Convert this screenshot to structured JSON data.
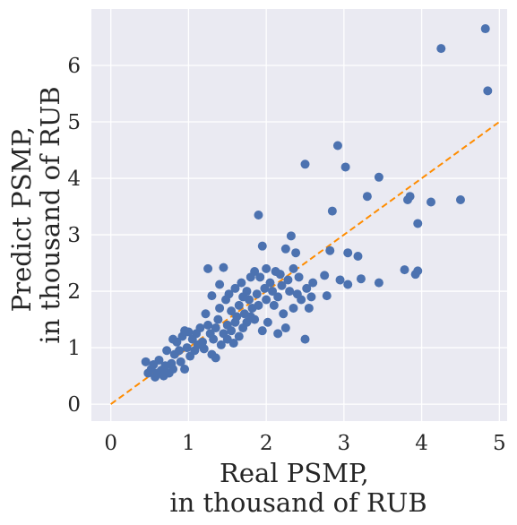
{
  "chart_data": {
    "type": "scatter",
    "xlabel": [
      "Real PSMP,",
      "in thousand of RUB"
    ],
    "ylabel": [
      "Predict PSMP,",
      "in thousand of RUB"
    ],
    "xlim": [
      -0.25,
      5.1
    ],
    "ylim": [
      -0.3,
      7.0
    ],
    "xticks": [
      "0",
      "1",
      "2",
      "3",
      "4",
      "5"
    ],
    "yticks": [
      "0",
      "1",
      "2",
      "3",
      "4",
      "5",
      "6"
    ],
    "grid": true,
    "background": "#eaeaf2",
    "point_color": "#4c72b0",
    "reference_line": {
      "x": [
        0,
        5
      ],
      "y": [
        0,
        5
      ],
      "style": "dashed",
      "color": "#ff8c00"
    },
    "points": [
      [
        0.45,
        0.75
      ],
      [
        0.48,
        0.55
      ],
      [
        0.52,
        0.62
      ],
      [
        0.55,
        0.7
      ],
      [
        0.57,
        0.48
      ],
      [
        0.6,
        0.55
      ],
      [
        0.62,
        0.78
      ],
      [
        0.65,
        0.6
      ],
      [
        0.68,
        0.5
      ],
      [
        0.7,
        0.68
      ],
      [
        0.72,
        0.95
      ],
      [
        0.75,
        0.55
      ],
      [
        0.78,
        0.72
      ],
      [
        0.8,
        0.62
      ],
      [
        0.8,
        1.15
      ],
      [
        0.82,
        0.88
      ],
      [
        0.85,
        1.1
      ],
      [
        0.88,
        0.95
      ],
      [
        0.9,
        0.75
      ],
      [
        0.92,
        1.2
      ],
      [
        0.95,
        1.3
      ],
      [
        0.95,
        0.62
      ],
      [
        0.98,
        1.0
      ],
      [
        1.0,
        1.28
      ],
      [
        1.02,
        0.85
      ],
      [
        1.05,
        1.15
      ],
      [
        1.08,
        0.95
      ],
      [
        1.1,
        1.25
      ],
      [
        1.12,
        1.05
      ],
      [
        1.15,
        1.35
      ],
      [
        1.18,
        1.1
      ],
      [
        1.2,
        0.98
      ],
      [
        1.22,
        1.6
      ],
      [
        1.25,
        1.4
      ],
      [
        1.25,
        2.4
      ],
      [
        1.28,
        1.25
      ],
      [
        1.3,
        1.92
      ],
      [
        1.3,
        0.88
      ],
      [
        1.32,
        1.15
      ],
      [
        1.35,
        1.35
      ],
      [
        1.35,
        0.82
      ],
      [
        1.38,
        1.5
      ],
      [
        1.4,
        1.7
      ],
      [
        1.4,
        2.12
      ],
      [
        1.42,
        1.05
      ],
      [
        1.45,
        2.42
      ],
      [
        1.45,
        1.25
      ],
      [
        1.48,
        1.85
      ],
      [
        1.5,
        1.4
      ],
      [
        1.5,
        1.15
      ],
      [
        1.52,
        1.95
      ],
      [
        1.55,
        1.3
      ],
      [
        1.55,
        1.65
      ],
      [
        1.58,
        1.08
      ],
      [
        1.6,
        2.05
      ],
      [
        1.6,
        1.45
      ],
      [
        1.62,
        1.55
      ],
      [
        1.65,
        1.75
      ],
      [
        1.65,
        1.2
      ],
      [
        1.68,
        2.15
      ],
      [
        1.7,
        1.9
      ],
      [
        1.7,
        1.35
      ],
      [
        1.72,
        1.6
      ],
      [
        1.75,
        2.0
      ],
      [
        1.75,
        1.45
      ],
      [
        1.78,
        1.85
      ],
      [
        1.8,
        2.25
      ],
      [
        1.8,
        1.55
      ],
      [
        1.82,
        1.7
      ],
      [
        1.85,
        2.35
      ],
      [
        1.85,
        1.5
      ],
      [
        1.88,
        1.95
      ],
      [
        1.9,
        3.35
      ],
      [
        1.9,
        1.75
      ],
      [
        1.92,
        2.25
      ],
      [
        1.95,
        2.8
      ],
      [
        1.95,
        1.3
      ],
      [
        1.98,
        2.05
      ],
      [
        2.0,
        2.4
      ],
      [
        2.0,
        1.85
      ],
      [
        2.02,
        1.45
      ],
      [
        2.05,
        2.15
      ],
      [
        2.08,
        2.0
      ],
      [
        2.1,
        1.75
      ],
      [
        2.12,
        2.35
      ],
      [
        2.15,
        1.25
      ],
      [
        2.15,
        1.9
      ],
      [
        2.18,
        2.3
      ],
      [
        2.2,
        2.1
      ],
      [
        2.22,
        1.6
      ],
      [
        2.25,
        2.75
      ],
      [
        2.25,
        1.35
      ],
      [
        2.28,
        2.2
      ],
      [
        2.3,
        2.0
      ],
      [
        2.32,
        2.98
      ],
      [
        2.35,
        1.7
      ],
      [
        2.35,
        2.4
      ],
      [
        2.38,
        2.68
      ],
      [
        2.4,
        1.95
      ],
      [
        2.42,
        2.25
      ],
      [
        2.45,
        1.85
      ],
      [
        2.5,
        4.25
      ],
      [
        2.5,
        1.15
      ],
      [
        2.52,
        2.05
      ],
      [
        2.55,
        1.7
      ],
      [
        2.58,
        1.9
      ],
      [
        2.6,
        2.15
      ],
      [
        2.75,
        2.28
      ],
      [
        2.78,
        1.92
      ],
      [
        2.82,
        2.72
      ],
      [
        2.85,
        3.42
      ],
      [
        2.92,
        4.58
      ],
      [
        2.95,
        2.2
      ],
      [
        3.02,
        4.2
      ],
      [
        3.05,
        2.68
      ],
      [
        3.05,
        2.12
      ],
      [
        3.18,
        2.62
      ],
      [
        3.22,
        2.22
      ],
      [
        3.3,
        3.68
      ],
      [
        3.45,
        4.02
      ],
      [
        3.45,
        2.15
      ],
      [
        3.78,
        2.38
      ],
      [
        3.82,
        3.62
      ],
      [
        3.85,
        3.68
      ],
      [
        3.92,
        2.3
      ],
      [
        3.95,
        2.36
      ],
      [
        3.95,
        3.2
      ],
      [
        4.12,
        3.58
      ],
      [
        4.25,
        6.3
      ],
      [
        4.5,
        3.62
      ],
      [
        4.82,
        6.65
      ],
      [
        4.85,
        5.55
      ]
    ]
  }
}
